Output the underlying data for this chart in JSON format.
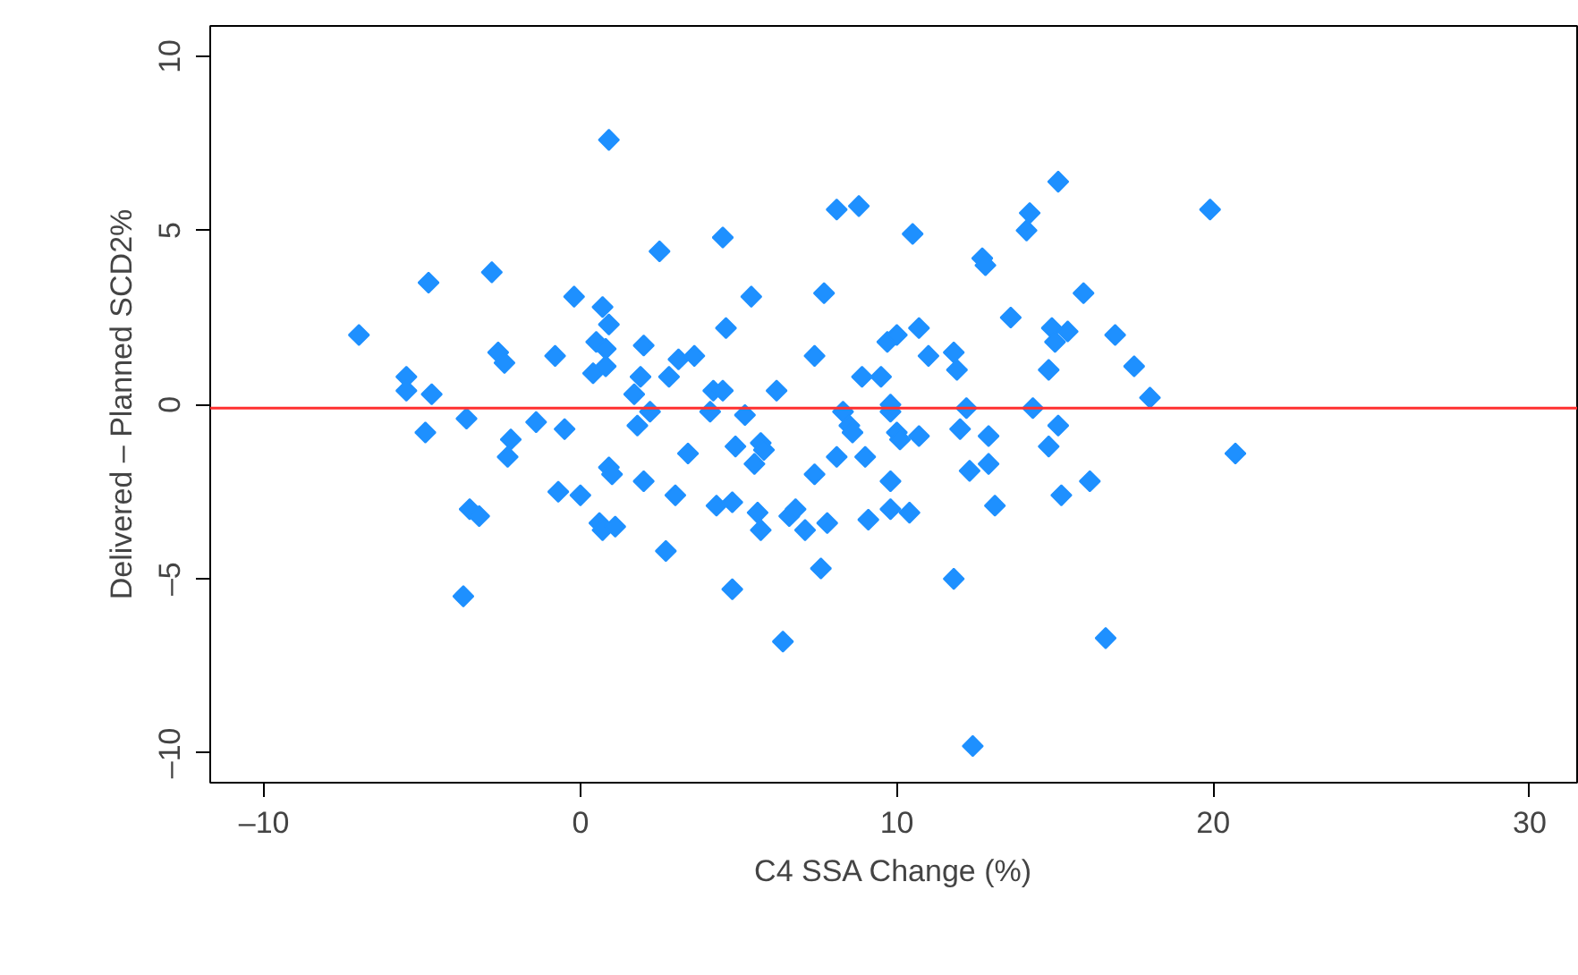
{
  "chart_data": {
    "type": "scatter",
    "xlabel": "C4 SSA Change (%)",
    "ylabel": "Delivered – Planned SCD2%",
    "marker": "diamond",
    "grid": false,
    "xlim": [
      -11.7,
      31.5
    ],
    "ylim": [
      -10.85,
      10.87
    ],
    "xticks": [
      {
        "value": -10,
        "label": "–10"
      },
      0,
      10,
      20,
      30
    ],
    "yticks": [
      {
        "value": -10,
        "label": "–10"
      },
      {
        "value": -5,
        "label": "–5"
      },
      0,
      5,
      10
    ],
    "ref_lines": [
      {
        "axis": "y",
        "value": -0.1,
        "color": "#ff3030"
      }
    ],
    "series": [
      {
        "color": "#1e90ff",
        "x": [
          -7.0,
          -5.5,
          -5.5,
          -4.8,
          -4.9,
          -4.7,
          -3.6,
          -3.5,
          -3.7,
          -3.2,
          -2.8,
          -2.6,
          -2.4,
          -2.2,
          -2.3,
          -1.4,
          -0.8,
          -0.7,
          -0.5,
          -0.2,
          0.0,
          0.4,
          0.5,
          0.6,
          0.7,
          0.8,
          0.8,
          0.7,
          0.9,
          0.9,
          0.9,
          1.0,
          1.1,
          1.7,
          1.8,
          1.9,
          2.0,
          2.0,
          2.2,
          2.5,
          2.7,
          2.8,
          3.0,
          3.1,
          3.4,
          3.6,
          4.1,
          4.2,
          4.3,
          4.5,
          4.6,
          4.5,
          4.8,
          4.8,
          4.9,
          5.2,
          5.4,
          5.5,
          5.6,
          5.7,
          5.7,
          5.8,
          6.2,
          6.4,
          6.6,
          6.8,
          7.1,
          7.4,
          7.4,
          7.6,
          7.7,
          7.8,
          8.1,
          8.1,
          8.3,
          8.5,
          8.6,
          8.8,
          8.9,
          9.0,
          9.1,
          9.5,
          9.7,
          9.8,
          9.8,
          9.8,
          9.8,
          10.0,
          10.0,
          10.1,
          10.4,
          10.5,
          10.7,
          10.7,
          11.0,
          11.8,
          11.8,
          11.9,
          12.0,
          12.2,
          12.3,
          12.4,
          12.7,
          12.8,
          12.9,
          12.9,
          13.1,
          13.6,
          14.1,
          14.2,
          14.3,
          14.8,
          14.8,
          14.9,
          15.0,
          15.1,
          15.1,
          15.2,
          15.4,
          15.9,
          16.1,
          16.6,
          16.9,
          17.5,
          18.0,
          19.9,
          20.7
        ],
        "values": [
          2.0,
          0.8,
          0.4,
          3.5,
          -0.8,
          0.3,
          -0.4,
          -3.0,
          -5.5,
          -3.2,
          3.8,
          1.5,
          1.2,
          -1.0,
          -1.5,
          -0.5,
          1.4,
          -2.5,
          -0.7,
          3.1,
          -2.6,
          0.9,
          1.8,
          -3.4,
          -3.6,
          1.1,
          1.6,
          2.8,
          2.3,
          7.6,
          -1.8,
          -2.0,
          -3.5,
          0.3,
          -0.6,
          0.8,
          1.7,
          -2.2,
          -0.2,
          4.4,
          -4.2,
          0.8,
          -2.6,
          1.3,
          -1.4,
          1.4,
          -0.2,
          0.4,
          -2.9,
          4.8,
          2.2,
          0.4,
          -2.8,
          -5.3,
          -1.2,
          -0.3,
          3.1,
          -1.7,
          -3.1,
          -3.6,
          -1.1,
          -1.3,
          0.4,
          -6.8,
          -3.2,
          -3.0,
          -3.6,
          1.4,
          -2.0,
          -4.7,
          3.2,
          -3.4,
          -1.5,
          5.6,
          -0.2,
          -0.6,
          -0.8,
          5.7,
          0.8,
          -1.5,
          -3.3,
          0.8,
          1.8,
          -0.2,
          0.0,
          -3.0,
          -2.2,
          2.0,
          -0.8,
          -1.0,
          -3.1,
          4.9,
          2.2,
          -0.9,
          1.4,
          1.5,
          -5.0,
          1.0,
          -0.7,
          -0.1,
          -1.9,
          -9.8,
          4.2,
          4.0,
          -1.7,
          -0.9,
          -2.9,
          2.5,
          5.0,
          5.5,
          -0.1,
          -1.2,
          1.0,
          2.2,
          1.8,
          6.4,
          -0.6,
          -2.6,
          2.1,
          3.2,
          -2.2,
          -6.7,
          2.0,
          1.1,
          0.2,
          5.6,
          -1.4
        ]
      }
    ]
  }
}
